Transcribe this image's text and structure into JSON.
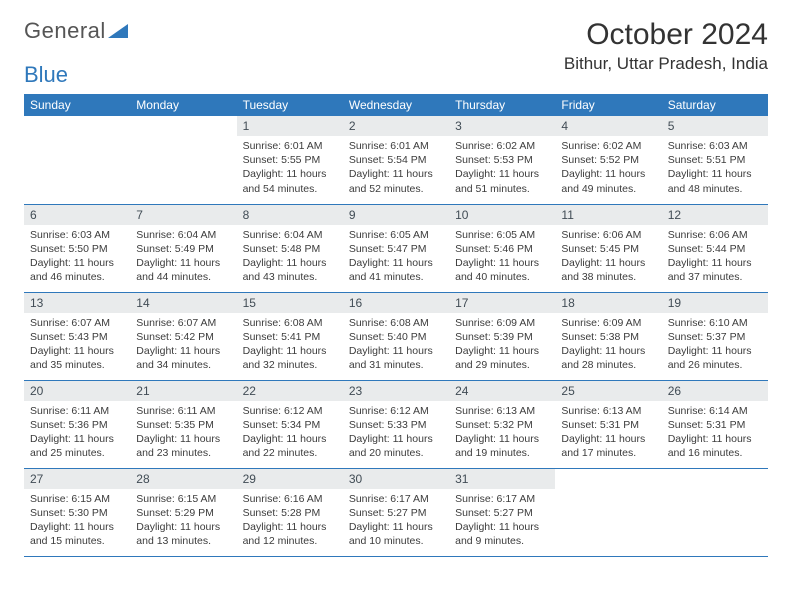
{
  "logo": {
    "part1": "General",
    "part2": "Blue"
  },
  "title": "October 2024",
  "location": "Bithur, Uttar Pradesh, India",
  "colors": {
    "header_bg": "#2f78bb",
    "header_text": "#ffffff",
    "daynum_bg": "#e9ebec",
    "row_border": "#2f78bb",
    "body_text": "#3c3c3c"
  },
  "weekdays": [
    "Sunday",
    "Monday",
    "Tuesday",
    "Wednesday",
    "Thursday",
    "Friday",
    "Saturday"
  ],
  "weeks": [
    [
      null,
      null,
      {
        "n": "1",
        "sr": "Sunrise: 6:01 AM",
        "ss": "Sunset: 5:55 PM",
        "dl": "Daylight: 11 hours and 54 minutes."
      },
      {
        "n": "2",
        "sr": "Sunrise: 6:01 AM",
        "ss": "Sunset: 5:54 PM",
        "dl": "Daylight: 11 hours and 52 minutes."
      },
      {
        "n": "3",
        "sr": "Sunrise: 6:02 AM",
        "ss": "Sunset: 5:53 PM",
        "dl": "Daylight: 11 hours and 51 minutes."
      },
      {
        "n": "4",
        "sr": "Sunrise: 6:02 AM",
        "ss": "Sunset: 5:52 PM",
        "dl": "Daylight: 11 hours and 49 minutes."
      },
      {
        "n": "5",
        "sr": "Sunrise: 6:03 AM",
        "ss": "Sunset: 5:51 PM",
        "dl": "Daylight: 11 hours and 48 minutes."
      }
    ],
    [
      {
        "n": "6",
        "sr": "Sunrise: 6:03 AM",
        "ss": "Sunset: 5:50 PM",
        "dl": "Daylight: 11 hours and 46 minutes."
      },
      {
        "n": "7",
        "sr": "Sunrise: 6:04 AM",
        "ss": "Sunset: 5:49 PM",
        "dl": "Daylight: 11 hours and 44 minutes."
      },
      {
        "n": "8",
        "sr": "Sunrise: 6:04 AM",
        "ss": "Sunset: 5:48 PM",
        "dl": "Daylight: 11 hours and 43 minutes."
      },
      {
        "n": "9",
        "sr": "Sunrise: 6:05 AM",
        "ss": "Sunset: 5:47 PM",
        "dl": "Daylight: 11 hours and 41 minutes."
      },
      {
        "n": "10",
        "sr": "Sunrise: 6:05 AM",
        "ss": "Sunset: 5:46 PM",
        "dl": "Daylight: 11 hours and 40 minutes."
      },
      {
        "n": "11",
        "sr": "Sunrise: 6:06 AM",
        "ss": "Sunset: 5:45 PM",
        "dl": "Daylight: 11 hours and 38 minutes."
      },
      {
        "n": "12",
        "sr": "Sunrise: 6:06 AM",
        "ss": "Sunset: 5:44 PM",
        "dl": "Daylight: 11 hours and 37 minutes."
      }
    ],
    [
      {
        "n": "13",
        "sr": "Sunrise: 6:07 AM",
        "ss": "Sunset: 5:43 PM",
        "dl": "Daylight: 11 hours and 35 minutes."
      },
      {
        "n": "14",
        "sr": "Sunrise: 6:07 AM",
        "ss": "Sunset: 5:42 PM",
        "dl": "Daylight: 11 hours and 34 minutes."
      },
      {
        "n": "15",
        "sr": "Sunrise: 6:08 AM",
        "ss": "Sunset: 5:41 PM",
        "dl": "Daylight: 11 hours and 32 minutes."
      },
      {
        "n": "16",
        "sr": "Sunrise: 6:08 AM",
        "ss": "Sunset: 5:40 PM",
        "dl": "Daylight: 11 hours and 31 minutes."
      },
      {
        "n": "17",
        "sr": "Sunrise: 6:09 AM",
        "ss": "Sunset: 5:39 PM",
        "dl": "Daylight: 11 hours and 29 minutes."
      },
      {
        "n": "18",
        "sr": "Sunrise: 6:09 AM",
        "ss": "Sunset: 5:38 PM",
        "dl": "Daylight: 11 hours and 28 minutes."
      },
      {
        "n": "19",
        "sr": "Sunrise: 6:10 AM",
        "ss": "Sunset: 5:37 PM",
        "dl": "Daylight: 11 hours and 26 minutes."
      }
    ],
    [
      {
        "n": "20",
        "sr": "Sunrise: 6:11 AM",
        "ss": "Sunset: 5:36 PM",
        "dl": "Daylight: 11 hours and 25 minutes."
      },
      {
        "n": "21",
        "sr": "Sunrise: 6:11 AM",
        "ss": "Sunset: 5:35 PM",
        "dl": "Daylight: 11 hours and 23 minutes."
      },
      {
        "n": "22",
        "sr": "Sunrise: 6:12 AM",
        "ss": "Sunset: 5:34 PM",
        "dl": "Daylight: 11 hours and 22 minutes."
      },
      {
        "n": "23",
        "sr": "Sunrise: 6:12 AM",
        "ss": "Sunset: 5:33 PM",
        "dl": "Daylight: 11 hours and 20 minutes."
      },
      {
        "n": "24",
        "sr": "Sunrise: 6:13 AM",
        "ss": "Sunset: 5:32 PM",
        "dl": "Daylight: 11 hours and 19 minutes."
      },
      {
        "n": "25",
        "sr": "Sunrise: 6:13 AM",
        "ss": "Sunset: 5:31 PM",
        "dl": "Daylight: 11 hours and 17 minutes."
      },
      {
        "n": "26",
        "sr": "Sunrise: 6:14 AM",
        "ss": "Sunset: 5:31 PM",
        "dl": "Daylight: 11 hours and 16 minutes."
      }
    ],
    [
      {
        "n": "27",
        "sr": "Sunrise: 6:15 AM",
        "ss": "Sunset: 5:30 PM",
        "dl": "Daylight: 11 hours and 15 minutes."
      },
      {
        "n": "28",
        "sr": "Sunrise: 6:15 AM",
        "ss": "Sunset: 5:29 PM",
        "dl": "Daylight: 11 hours and 13 minutes."
      },
      {
        "n": "29",
        "sr": "Sunrise: 6:16 AM",
        "ss": "Sunset: 5:28 PM",
        "dl": "Daylight: 11 hours and 12 minutes."
      },
      {
        "n": "30",
        "sr": "Sunrise: 6:17 AM",
        "ss": "Sunset: 5:27 PM",
        "dl": "Daylight: 11 hours and 10 minutes."
      },
      {
        "n": "31",
        "sr": "Sunrise: 6:17 AM",
        "ss": "Sunset: 5:27 PM",
        "dl": "Daylight: 11 hours and 9 minutes."
      },
      null,
      null
    ]
  ]
}
